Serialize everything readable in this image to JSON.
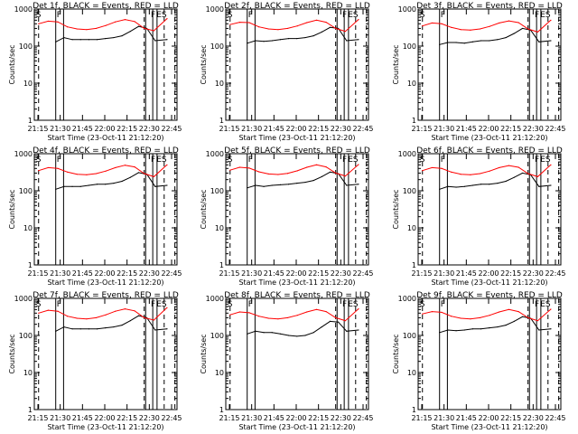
{
  "shared": {
    "type": "line",
    "xlabel": "Start Time (23-Oct-11 21:12:20)",
    "ylabel": "Counts/sec",
    "x_ticks": [
      "21:15",
      "21:30",
      "21:45",
      "22:00",
      "22:15",
      "22:30",
      "22:45"
    ],
    "y_ticks": [
      "1",
      "10",
      "100",
      "1000"
    ],
    "ylim": [
      1,
      1000
    ],
    "log_y": true,
    "colors": {
      "events": "#000000",
      "lld": "#ff0000",
      "axes": "#000000",
      "background": "#ffffff"
    }
  },
  "chart_data": [
    {
      "type": "line",
      "title": "Det 1f, BLACK = Events, RED = LLD",
      "flags": [
        "S",
        "F",
        "F",
        "E",
        "S"
      ],
      "series": [
        {
          "values": [
            130,
            170,
            150,
            150,
            150,
            150,
            160,
            170,
            190,
            250,
            340,
            300,
            140,
            150
          ]
        },
        {
          "values": [
            400,
            470,
            450,
            330,
            290,
            280,
            300,
            360,
            450,
            520,
            460,
            300,
            260,
            550
          ]
        }
      ]
    },
    {
      "type": "line",
      "title": "Det 2f, BLACK = Events, RED = LLD",
      "flags": [
        "S",
        "F",
        "F",
        "E",
        "S"
      ],
      "series": [
        {
          "values": [
            120,
            140,
            135,
            140,
            150,
            160,
            160,
            170,
            190,
            240,
            320,
            300,
            140,
            150
          ]
        },
        {
          "values": [
            380,
            440,
            430,
            330,
            290,
            280,
            300,
            350,
            430,
            500,
            440,
            300,
            250,
            520
          ]
        }
      ]
    },
    {
      "type": "line",
      "title": "Det 3f, BLACK = Events, RED = LLD",
      "flags": [
        "S",
        "F",
        "F",
        "E",
        "S"
      ],
      "series": [
        {
          "values": [
            110,
            125,
            125,
            120,
            130,
            140,
            140,
            150,
            170,
            220,
            300,
            270,
            130,
            140
          ]
        },
        {
          "values": [
            350,
            420,
            400,
            320,
            280,
            270,
            290,
            340,
            420,
            480,
            430,
            290,
            240,
            500
          ]
        }
      ]
    },
    {
      "type": "line",
      "title": "Det 4f, BLACK = Events, RED = LLD",
      "flags": [
        "S",
        "F",
        "F",
        "E",
        "S"
      ],
      "series": [
        {
          "values": [
            110,
            130,
            130,
            130,
            140,
            150,
            150,
            160,
            180,
            230,
            310,
            280,
            130,
            140
          ]
        },
        {
          "values": [
            350,
            420,
            400,
            320,
            280,
            270,
            290,
            340,
            420,
            490,
            440,
            290,
            240,
            500
          ]
        }
      ]
    },
    {
      "type": "line",
      "title": "Det 5f, BLACK = Events, RED = LLD",
      "flags": [
        "S",
        "F",
        "F",
        "E",
        "S"
      ],
      "series": [
        {
          "values": [
            120,
            140,
            130,
            140,
            145,
            150,
            160,
            170,
            190,
            240,
            320,
            290,
            140,
            150
          ]
        },
        {
          "values": [
            360,
            430,
            410,
            325,
            285,
            275,
            295,
            345,
            430,
            500,
            440,
            300,
            250,
            510
          ]
        }
      ]
    },
    {
      "type": "line",
      "title": "Det 6f, BLACK = Events, RED = LLD",
      "flags": [
        "S",
        "F",
        "F",
        "E",
        "S"
      ],
      "series": [
        {
          "values": [
            110,
            130,
            125,
            130,
            140,
            150,
            150,
            160,
            180,
            230,
            300,
            270,
            130,
            140
          ]
        },
        {
          "values": [
            350,
            420,
            400,
            320,
            280,
            270,
            290,
            340,
            420,
            480,
            430,
            290,
            240,
            500
          ]
        }
      ]
    },
    {
      "type": "line",
      "title": "Det 7f, BLACK = Events, RED = LLD",
      "flags": [
        "S",
        "F",
        "F",
        "E",
        "S"
      ],
      "series": [
        {
          "values": [
            130,
            170,
            150,
            150,
            150,
            150,
            160,
            170,
            190,
            250,
            340,
            300,
            140,
            150
          ]
        },
        {
          "values": [
            400,
            480,
            450,
            330,
            290,
            280,
            300,
            360,
            450,
            520,
            460,
            300,
            260,
            560
          ]
        }
      ]
    },
    {
      "type": "line",
      "title": "Det 8f, BLACK = Events, RED = LLD",
      "flags": [
        "S",
        "F",
        "F",
        "E",
        "S"
      ],
      "series": [
        {
          "values": [
            110,
            130,
            120,
            120,
            110,
            100,
            95,
            100,
            120,
            170,
            240,
            230,
            130,
            140
          ]
        },
        {
          "values": [
            360,
            430,
            410,
            330,
            290,
            280,
            300,
            350,
            430,
            500,
            440,
            300,
            250,
            520
          ]
        }
      ]
    },
    {
      "type": "line",
      "title": "Det 9f, BLACK = Events, RED = LLD",
      "flags": [
        "S",
        "F",
        "F",
        "E",
        "S"
      ],
      "series": [
        {
          "values": [
            120,
            140,
            135,
            140,
            150,
            150,
            160,
            170,
            190,
            240,
            320,
            290,
            140,
            150
          ]
        },
        {
          "values": [
            380,
            440,
            420,
            330,
            290,
            280,
            300,
            350,
            430,
            500,
            440,
            300,
            250,
            510
          ]
        }
      ]
    }
  ]
}
